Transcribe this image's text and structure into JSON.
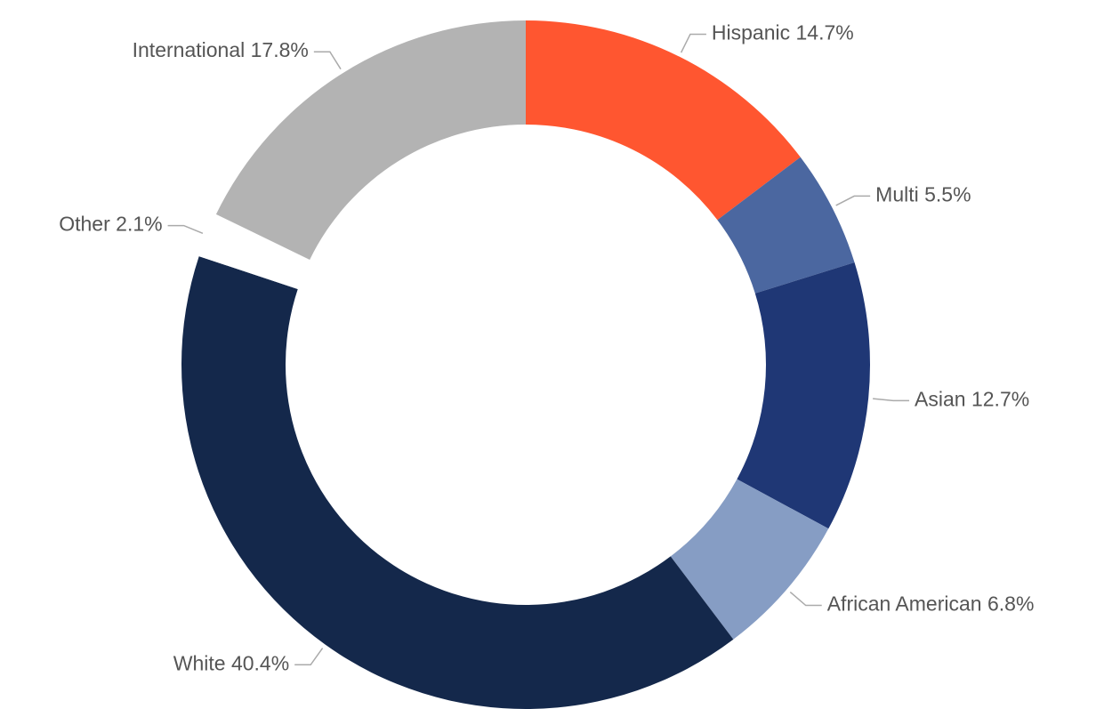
{
  "chart_data": {
    "type": "donut",
    "categories": [
      "Hispanic",
      "Multi",
      "Asian",
      "African American",
      "White",
      "Other",
      "International"
    ],
    "values": [
      14.7,
      5.5,
      12.7,
      6.8,
      40.4,
      2.1,
      17.8
    ],
    "value_labels": [
      "14.7%",
      "5.5%",
      "12.7%",
      "6.8%",
      "40.4%",
      "2.1%",
      "17.8%"
    ],
    "colors": [
      "#ff5630",
      "#4b67a0",
      "#1f3775",
      "#869dc4",
      "#14284b",
      "#ffffff",
      "#b3b3b3"
    ]
  }
}
